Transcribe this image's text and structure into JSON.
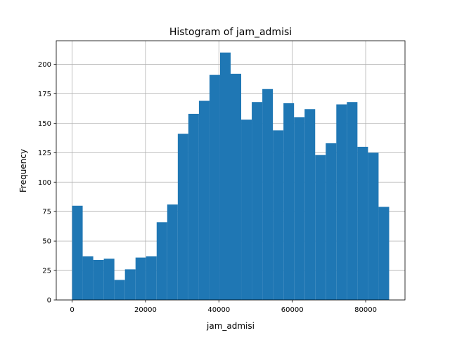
{
  "chart_data": {
    "type": "bar",
    "title": "Histogram of jam_admisi",
    "xlabel": "jam_admisi",
    "ylabel": "Frequency",
    "xlim": [
      -4320,
      90720
    ],
    "ylim": [
      0,
      220
    ],
    "xticks": [
      0,
      20000,
      40000,
      60000,
      80000
    ],
    "yticks": [
      0,
      25,
      50,
      75,
      100,
      125,
      150,
      175,
      200
    ],
    "grid": true,
    "bin_edges": [
      0,
      2880,
      5760,
      8640,
      11520,
      14400,
      17280,
      20160,
      23040,
      25920,
      28800,
      31680,
      34560,
      37440,
      40320,
      43200,
      46080,
      48960,
      51840,
      54720,
      57600,
      60480,
      63360,
      66240,
      69120,
      72000,
      74880,
      77760,
      80640,
      83520,
      86400
    ],
    "values": [
      80,
      37,
      34,
      35,
      17,
      26,
      36,
      37,
      66,
      81,
      141,
      158,
      169,
      191,
      210,
      192,
      153,
      168,
      179,
      144,
      167,
      155,
      162,
      123,
      133,
      166,
      168,
      130,
      125,
      79
    ],
    "colors": {
      "bar": "#1f77b4",
      "grid": "#b0b0b0",
      "axis": "#000000"
    }
  }
}
